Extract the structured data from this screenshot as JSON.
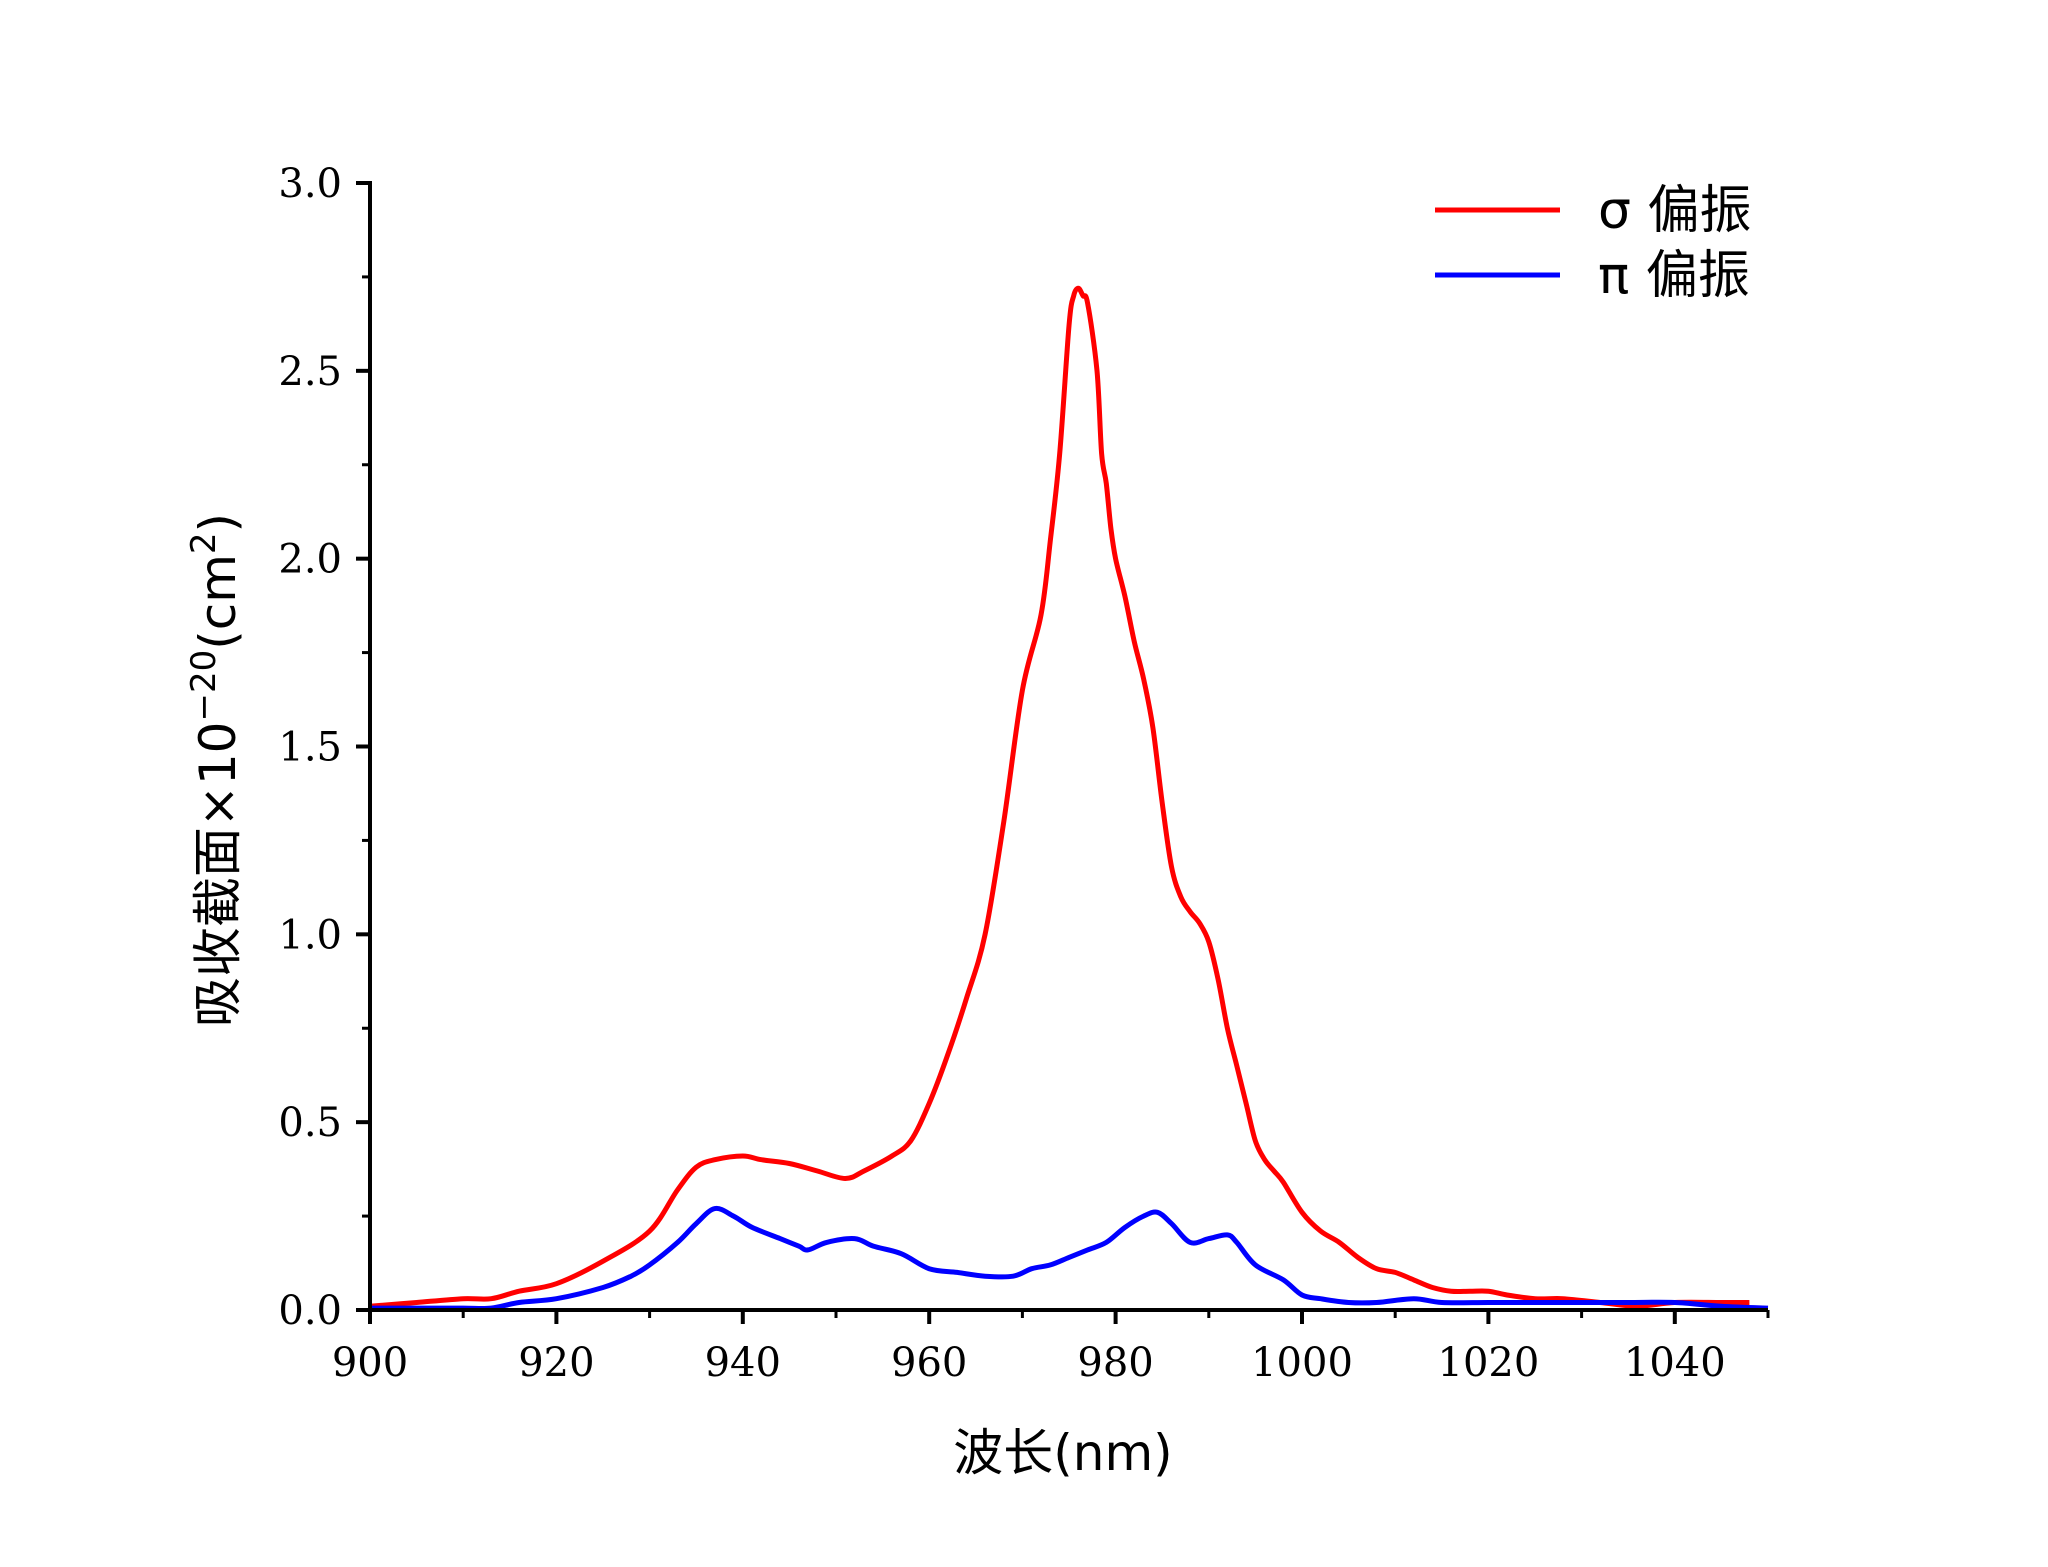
{
  "chart_data": {
    "type": "line",
    "title": "",
    "xlabel": "波长(nm)",
    "ylabel": {
      "main": "吸收截面×10",
      "exponent": "−20",
      "unit_open": "(cm",
      "unit_exponent": "2",
      "unit_close": ")"
    },
    "xlim": [
      900,
      1050
    ],
    "ylim": [
      0,
      3.0
    ],
    "xticks": [
      900,
      920,
      940,
      960,
      980,
      1000,
      1020,
      1040
    ],
    "xtick_labels": [
      "900",
      "920",
      "940",
      "960",
      "980",
      "1000",
      "1020",
      "1040"
    ],
    "yticks": [
      0,
      0.5,
      1.0,
      1.5,
      2.0,
      2.5,
      3.0
    ],
    "ytick_labels": [
      "0.0",
      "0.5",
      "1.0",
      "1.5",
      "2.0",
      "2.5",
      "3.0"
    ],
    "grid": false,
    "legend_position": "top-right",
    "series": [
      {
        "name": "σ 偏振",
        "color": "#ff0000",
        "x": [
          900,
          905,
          910,
          913,
          916,
          920,
          925,
          930,
          933,
          935,
          937,
          940,
          942,
          945,
          948,
          951,
          953,
          956,
          958,
          960,
          962,
          964,
          966,
          968,
          970,
          972,
          973,
          974,
          975,
          975.5,
          976,
          976.5,
          977,
          978,
          978.5,
          979,
          979.5,
          980,
          981,
          982,
          983,
          984,
          985,
          986,
          987,
          988,
          989,
          990,
          991,
          992,
          993,
          994,
          995,
          996,
          997,
          998,
          1000,
          1002,
          1004,
          1006,
          1008,
          1010,
          1012,
          1014,
          1016,
          1018,
          1020,
          1022,
          1025,
          1028,
          1032,
          1036,
          1040,
          1045,
          1048
        ],
        "values": [
          0.01,
          0.02,
          0.03,
          0.03,
          0.05,
          0.07,
          0.13,
          0.21,
          0.32,
          0.38,
          0.4,
          0.41,
          0.4,
          0.39,
          0.37,
          0.35,
          0.37,
          0.41,
          0.45,
          0.55,
          0.68,
          0.83,
          1.0,
          1.3,
          1.65,
          1.85,
          2.05,
          2.28,
          2.62,
          2.7,
          2.72,
          2.7,
          2.68,
          2.5,
          2.28,
          2.2,
          2.08,
          2.0,
          1.9,
          1.78,
          1.68,
          1.55,
          1.35,
          1.18,
          1.1,
          1.06,
          1.03,
          0.98,
          0.88,
          0.75,
          0.65,
          0.55,
          0.45,
          0.4,
          0.37,
          0.34,
          0.26,
          0.21,
          0.18,
          0.14,
          0.11,
          0.1,
          0.08,
          0.06,
          0.05,
          0.05,
          0.05,
          0.04,
          0.03,
          0.03,
          0.02,
          0.01,
          0.02,
          0.02,
          0.02
        ]
      },
      {
        "name": "π 偏振",
        "color": "#0000ff",
        "x": [
          900,
          905,
          910,
          913,
          916,
          920,
          925,
          928,
          930,
          933,
          935,
          937,
          939,
          941,
          944,
          946,
          947,
          949,
          952,
          954,
          957,
          960,
          963,
          966,
          969,
          971,
          973,
          975,
          977,
          979,
          981,
          983,
          984.5,
          986,
          988,
          990,
          992,
          993,
          995,
          998,
          1000,
          1002,
          1005,
          1008,
          1012,
          1015,
          1020,
          1025,
          1030,
          1035,
          1040,
          1045,
          1050
        ],
        "values": [
          0.005,
          0.005,
          0.005,
          0.005,
          0.02,
          0.03,
          0.06,
          0.09,
          0.12,
          0.18,
          0.23,
          0.27,
          0.25,
          0.22,
          0.19,
          0.17,
          0.16,
          0.18,
          0.19,
          0.17,
          0.15,
          0.11,
          0.1,
          0.09,
          0.09,
          0.11,
          0.12,
          0.14,
          0.16,
          0.18,
          0.22,
          0.25,
          0.26,
          0.23,
          0.18,
          0.19,
          0.2,
          0.18,
          0.12,
          0.08,
          0.04,
          0.03,
          0.02,
          0.02,
          0.03,
          0.02,
          0.02,
          0.02,
          0.02,
          0.02,
          0.02,
          0.01,
          0.005
        ]
      }
    ]
  }
}
